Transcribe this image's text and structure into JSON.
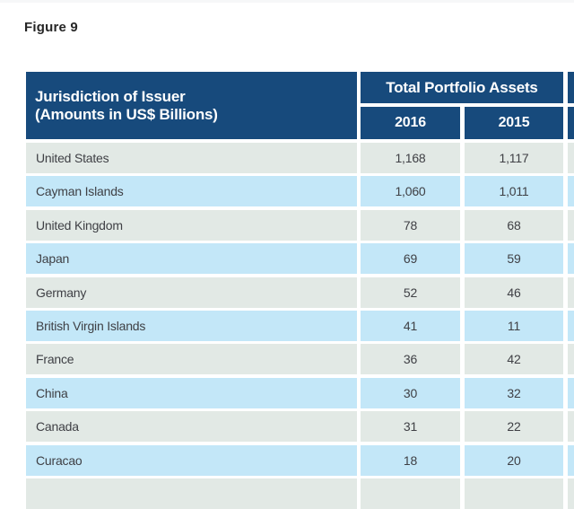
{
  "figure_label": "Figure 9",
  "table": {
    "header": {
      "col1_line1": "Jurisdiction of Issuer",
      "col1_line2": "(Amounts in US$ Billions)",
      "group_label": "Total Portfolio Assets",
      "year_2016": "2016",
      "year_2015": "2015"
    },
    "rows": [
      {
        "jurisdiction": "United States",
        "y2016": "1,168",
        "y2015": "1,117"
      },
      {
        "jurisdiction": "Cayman Islands",
        "y2016": "1,060",
        "y2015": "1,011"
      },
      {
        "jurisdiction": "United Kingdom",
        "y2016": "78",
        "y2015": "68"
      },
      {
        "jurisdiction": "Japan",
        "y2016": "69",
        "y2015": "59"
      },
      {
        "jurisdiction": "Germany",
        "y2016": "52",
        "y2015": "46"
      },
      {
        "jurisdiction": "British Virgin Islands",
        "y2016": "41",
        "y2015": "11"
      },
      {
        "jurisdiction": "France",
        "y2016": "36",
        "y2015": "42"
      },
      {
        "jurisdiction": "China",
        "y2016": "30",
        "y2015": "32"
      },
      {
        "jurisdiction": "Canada",
        "y2016": "31",
        "y2015": "22"
      },
      {
        "jurisdiction": "Curacao",
        "y2016": "18",
        "y2015": "20"
      }
    ],
    "partial_next_row_visible": true,
    "truncated_right_column_visible": true
  },
  "chart_data": {
    "type": "table",
    "title": "Figure 9",
    "columns": [
      "Jurisdiction of Issuer (Amounts in US$ Billions)",
      "Total Portfolio Assets 2016",
      "Total Portfolio Assets 2015"
    ],
    "rows": [
      [
        "United States",
        1168,
        1117
      ],
      [
        "Cayman Islands",
        1060,
        1011
      ],
      [
        "United Kingdom",
        78,
        68
      ],
      [
        "Japan",
        69,
        59
      ],
      [
        "Germany",
        52,
        46
      ],
      [
        "British Virgin Islands",
        41,
        11
      ],
      [
        "France",
        36,
        42
      ],
      [
        "China",
        30,
        32
      ],
      [
        "Canada",
        31,
        22
      ],
      [
        "Curacao",
        18,
        20
      ]
    ]
  },
  "colors": {
    "header_navy": "#174a7c",
    "row_alt_green": "#e2e9e5",
    "row_alt_blue": "#c3e7f8",
    "text_dark": "#3f4045",
    "header_text": "#ffffff"
  }
}
